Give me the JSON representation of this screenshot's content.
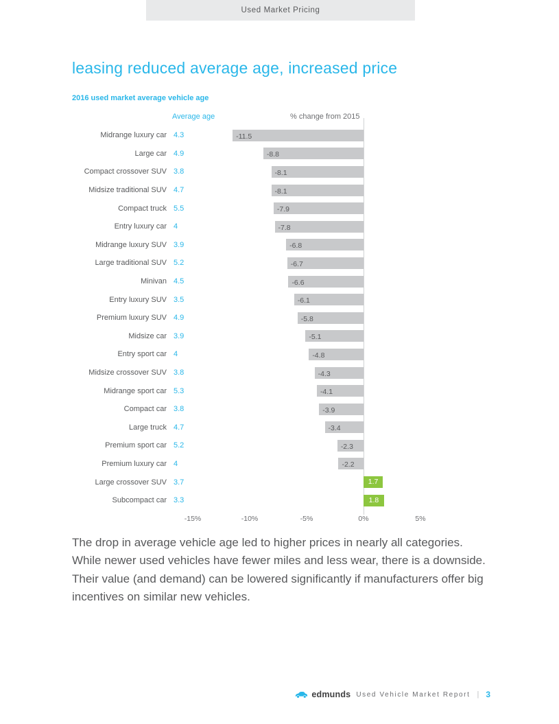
{
  "page": {
    "tab_label": "Used Market Pricing",
    "title": "leasing reduced average age, increased price",
    "subtitle": "2016 used market average vehicle age"
  },
  "chart_data": {
    "type": "bar",
    "orientation": "horizontal",
    "title": "2016 used market average vehicle age",
    "col_headers": {
      "age": "Average age",
      "change": "% change from 2015"
    },
    "categories": [
      "Midrange luxury car",
      "Large car",
      "Compact crossover SUV",
      "Midsize traditional SUV",
      "Compact truck",
      "Entry luxury car",
      "Midrange luxury SUV",
      "Large traditional SUV",
      "Minivan",
      "Entry luxury SUV",
      "Premium luxury SUV",
      "Midsize car",
      "Entry sport car",
      "Midsize crossover SUV",
      "Midrange sport car",
      "Compact car",
      "Large truck",
      "Premium sport car",
      "Premium luxury car",
      "Large crossover SUV",
      "Subcompact car"
    ],
    "series": [
      {
        "name": "Average age",
        "values": [
          4.3,
          4.9,
          3.8,
          4.7,
          5.5,
          4,
          3.9,
          5.2,
          4.5,
          3.5,
          4.9,
          3.9,
          4,
          3.8,
          5.3,
          3.8,
          4.7,
          5.2,
          4,
          3.7,
          3.3
        ]
      },
      {
        "name": "% change from 2015",
        "values": [
          -11.5,
          -8.8,
          -8.1,
          -8.1,
          -7.9,
          -7.8,
          -6.8,
          -6.7,
          -6.6,
          -6.1,
          -5.8,
          -5.1,
          -4.8,
          -4.3,
          -4.1,
          -3.9,
          -3.4,
          -2.3,
          -2.2,
          1.7,
          1.8
        ]
      }
    ],
    "x_ticks": [
      "-15%",
      "-10%",
      "-5%",
      "0%",
      "5%"
    ],
    "x_tick_values": [
      -15,
      -10,
      -5,
      0,
      5
    ],
    "xlim": [
      -15,
      5
    ],
    "grid": false,
    "colors": {
      "negative_bar": "#c8c9cb",
      "positive_bar": "#8dc63f",
      "accent": "#2ab7e9"
    }
  },
  "body_paragraph": "The drop in average vehicle age led to higher prices in nearly all categories. While newer used vehicles have fewer miles and less wear, there is a downside. Their value (and demand) can be lowered significantly if manufacturers offer big incentives on similar new vehicles.",
  "footer": {
    "brand": "edmunds",
    "report_title": "Used Vehicle Market Report",
    "separator": "|",
    "page_number": "3"
  }
}
